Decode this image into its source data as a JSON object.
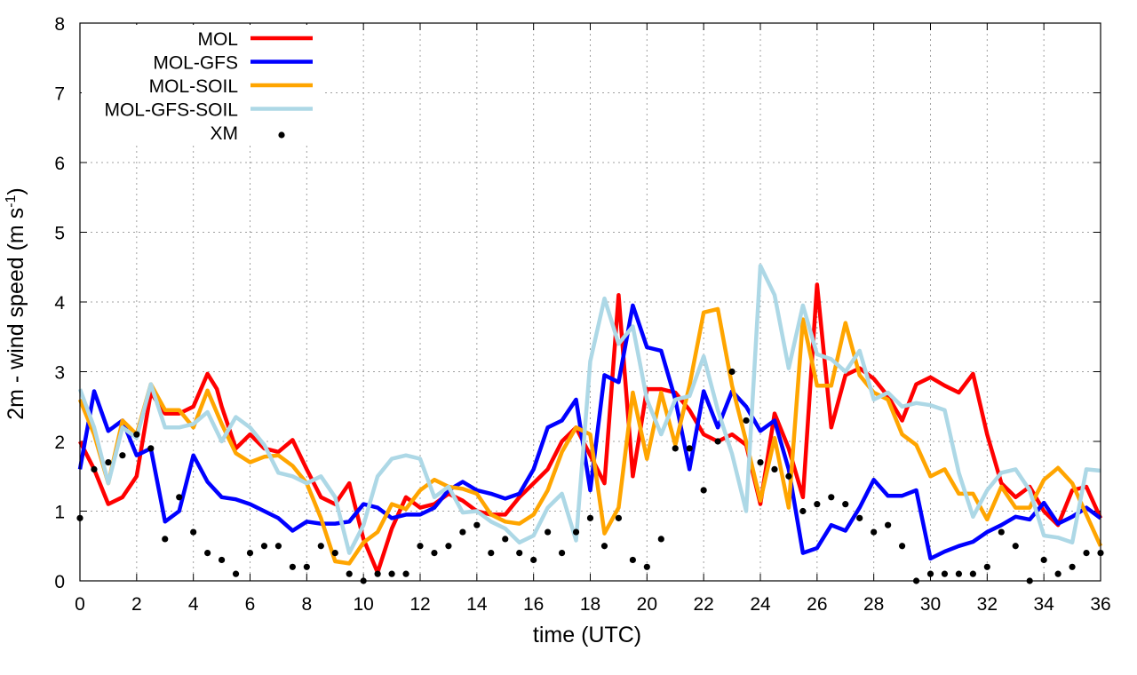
{
  "chart_data": {
    "type": "line",
    "title": "",
    "xlabel": "time (UTC)",
    "ylabel": "2m - wind speed  (m s⁻¹)",
    "ylabel_main": "2m - wind speed  (m s",
    "ylabel_sup": "-1",
    "ylabel_tail": ")",
    "xlim": [
      0,
      36
    ],
    "ylim": [
      0,
      8
    ],
    "xticks": [
      0,
      2,
      4,
      6,
      8,
      10,
      12,
      14,
      16,
      18,
      20,
      22,
      24,
      26,
      28,
      30,
      32,
      34,
      36
    ],
    "yticks": [
      0,
      1,
      2,
      3,
      4,
      5,
      6,
      7,
      8
    ],
    "grid": true,
    "legend_position": "top-left",
    "series": [
      {
        "name": "MOL",
        "color": "#ff0000",
        "style": "line",
        "x": [
          0,
          0.5,
          1,
          1.5,
          2,
          2.5,
          3,
          3.5,
          4,
          4.5,
          4.83,
          5,
          5.5,
          6,
          6.5,
          7,
          7.5,
          8,
          8.5,
          9,
          9.5,
          10,
          10.5,
          11,
          11.5,
          12,
          12.5,
          13,
          13.5,
          14,
          14.5,
          15,
          15.5,
          16,
          16.5,
          17,
          17.5,
          18,
          18.5,
          19,
          19.5,
          20,
          20.5,
          21,
          21.5,
          22,
          22.5,
          23,
          23.5,
          24,
          24.5,
          25,
          25.5,
          26,
          26.5,
          27,
          27.5,
          28,
          28.5,
          29,
          29.5,
          30,
          30.5,
          31,
          31.5,
          32,
          32.5,
          33,
          33.5,
          34,
          34.5,
          35,
          35.5,
          36
        ],
        "values": [
          2.0,
          1.6,
          1.1,
          1.2,
          1.5,
          2.7,
          2.4,
          2.4,
          2.5,
          2.97,
          2.75,
          2.5,
          1.9,
          2.1,
          1.9,
          1.85,
          2.02,
          1.6,
          1.2,
          1.1,
          1.4,
          0.6,
          0.12,
          0.75,
          1.2,
          1.05,
          1.1,
          1.25,
          1.15,
          1.0,
          0.95,
          0.95,
          1.2,
          1.4,
          1.6,
          2.0,
          2.2,
          1.8,
          1.4,
          4.1,
          1.5,
          2.75,
          2.75,
          2.7,
          2.45,
          2.1,
          2.0,
          2.1,
          1.95,
          1.1,
          2.4,
          1.9,
          1.2,
          4.25,
          2.2,
          2.95,
          3.05,
          2.9,
          2.65,
          2.3,
          2.82,
          2.92,
          2.8,
          2.7,
          2.97,
          2.1,
          1.4,
          1.2,
          1.35,
          1.0,
          0.8,
          1.3,
          1.35,
          0.9
        ]
      },
      {
        "name": "MOL-GFS",
        "color": "#0000ff",
        "style": "line",
        "x": [
          0,
          0.5,
          1,
          1.5,
          2,
          2.5,
          3,
          3.5,
          4,
          4.5,
          5,
          5.5,
          6,
          6.5,
          7,
          7.5,
          8,
          8.5,
          9,
          9.5,
          10,
          10.5,
          11,
          11.5,
          12,
          12.5,
          13,
          13.5,
          14,
          14.5,
          15,
          15.5,
          16,
          16.5,
          17,
          17.5,
          18,
          18.5,
          19,
          19.5,
          20,
          20.5,
          21,
          21.5,
          22,
          22.5,
          23,
          23.5,
          24,
          24.5,
          25,
          25.5,
          26,
          26.5,
          27,
          27.5,
          28,
          28.5,
          29,
          29.5,
          30,
          30.5,
          31,
          31.5,
          32,
          32.5,
          33,
          33.5,
          34,
          34.5,
          35,
          35.5,
          36
        ],
        "values": [
          1.6,
          2.72,
          2.15,
          2.3,
          1.8,
          1.9,
          0.85,
          1.0,
          1.8,
          1.42,
          1.2,
          1.17,
          1.1,
          1.0,
          0.9,
          0.72,
          0.85,
          0.82,
          0.82,
          0.85,
          1.1,
          1.05,
          0.9,
          0.95,
          0.95,
          1.05,
          1.3,
          1.42,
          1.3,
          1.25,
          1.18,
          1.25,
          1.6,
          2.2,
          2.3,
          2.6,
          1.3,
          2.95,
          2.85,
          3.95,
          3.35,
          3.3,
          2.6,
          1.6,
          2.72,
          2.2,
          2.72,
          2.5,
          2.15,
          2.3,
          1.6,
          0.4,
          0.47,
          0.8,
          0.72,
          1.05,
          1.45,
          1.22,
          1.22,
          1.3,
          0.32,
          0.42,
          0.5,
          0.56,
          0.7,
          0.8,
          0.92,
          0.88,
          1.12,
          0.82,
          0.92,
          1.05,
          0.9
        ]
      },
      {
        "name": "MOL-SOIL",
        "color": "#ffa500",
        "style": "line",
        "x": [
          0,
          0.5,
          1,
          1.5,
          2,
          2.5,
          3,
          3.5,
          4,
          4.5,
          5,
          5.5,
          6,
          6.5,
          7,
          7.5,
          8,
          8.5,
          9,
          9.5,
          10,
          10.5,
          11,
          11.5,
          12,
          12.5,
          13,
          13.5,
          14,
          14.5,
          15,
          15.5,
          16,
          16.5,
          17,
          17.5,
          18,
          18.5,
          19,
          19.5,
          20,
          20.5,
          21,
          21.5,
          22,
          22.5,
          23,
          23.5,
          24,
          24.5,
          25,
          25.5,
          26,
          26.5,
          27,
          27.5,
          28,
          28.5,
          29,
          29.5,
          30,
          30.5,
          31,
          31.5,
          32,
          32.5,
          33,
          33.5,
          34,
          34.5,
          35,
          35.5,
          36
        ],
        "values": [
          2.6,
          2.1,
          1.4,
          2.3,
          2.1,
          2.82,
          2.45,
          2.45,
          2.2,
          2.73,
          2.25,
          1.83,
          1.7,
          1.78,
          1.8,
          1.65,
          1.4,
          0.9,
          0.28,
          0.25,
          0.55,
          0.7,
          1.1,
          1.03,
          1.3,
          1.45,
          1.35,
          1.32,
          1.25,
          0.95,
          0.85,
          0.82,
          0.95,
          1.3,
          1.85,
          2.2,
          2.1,
          0.68,
          1.05,
          2.7,
          1.75,
          2.7,
          1.95,
          2.8,
          3.85,
          3.9,
          2.8,
          2.0,
          1.15,
          2.05,
          1.05,
          3.75,
          2.8,
          2.8,
          3.7,
          2.95,
          2.7,
          2.6,
          2.1,
          1.95,
          1.5,
          1.6,
          1.25,
          1.25,
          0.88,
          1.35,
          1.05,
          1.05,
          1.45,
          1.62,
          1.4,
          0.95,
          0.5
        ]
      },
      {
        "name": "MOL-GFS-SOIL",
        "color": "#add8e6",
        "style": "line",
        "x": [
          0,
          0.5,
          1,
          1.5,
          2,
          2.5,
          3,
          3.5,
          4,
          4.5,
          5,
          5.5,
          6,
          6.5,
          7,
          7.5,
          8,
          8.5,
          9,
          9.5,
          10,
          10.5,
          11,
          11.5,
          12,
          12.5,
          13,
          13.5,
          14,
          14.5,
          15,
          15.5,
          16,
          16.5,
          17,
          17.5,
          18,
          18.5,
          19,
          19.5,
          20,
          20.5,
          21,
          21.5,
          22,
          22.5,
          23,
          23.5,
          24,
          24.5,
          25,
          25.5,
          26,
          26.5,
          27,
          27.5,
          28,
          28.5,
          29,
          29.5,
          30,
          30.5,
          31,
          31.5,
          32,
          32.5,
          33,
          33.5,
          34,
          34.5,
          35,
          35.5,
          36
        ],
        "values": [
          2.75,
          2.2,
          1.4,
          2.2,
          2.05,
          2.82,
          2.2,
          2.2,
          2.25,
          2.42,
          2.0,
          2.35,
          2.2,
          1.95,
          1.55,
          1.5,
          1.4,
          1.5,
          1.2,
          0.4,
          0.8,
          1.5,
          1.75,
          1.8,
          1.75,
          1.2,
          1.35,
          0.98,
          1.0,
          0.85,
          0.75,
          0.55,
          0.65,
          1.05,
          1.25,
          0.58,
          3.15,
          4.05,
          3.4,
          3.65,
          2.6,
          2.1,
          2.6,
          2.65,
          3.22,
          2.45,
          1.82,
          1.0,
          4.52,
          4.1,
          3.05,
          3.95,
          3.25,
          3.18,
          3.0,
          3.3,
          2.6,
          2.7,
          2.5,
          2.55,
          2.52,
          2.45,
          1.55,
          0.92,
          1.3,
          1.55,
          1.6,
          1.3,
          0.65,
          0.62,
          0.55,
          1.6,
          1.58
        ]
      },
      {
        "name": "XM",
        "color": "#000000",
        "style": "points",
        "x": [
          0,
          0.5,
          1,
          1.5,
          2,
          2.5,
          3,
          3.5,
          4,
          4.5,
          5,
          5.5,
          6,
          6.5,
          7,
          7.5,
          8,
          8.5,
          9,
          9.5,
          10,
          10.5,
          11,
          11.5,
          12,
          12.5,
          13,
          13.5,
          14,
          14.5,
          15,
          15.5,
          16,
          16.5,
          17,
          17.5,
          18,
          18.5,
          19,
          19.5,
          20,
          20.5,
          21,
          21.5,
          22,
          22.5,
          23,
          23.5,
          24,
          24.5,
          25,
          25.5,
          26,
          26.5,
          27,
          27.5,
          28,
          28.5,
          29,
          29.5,
          30,
          30.5,
          31,
          31.5,
          32,
          32.5,
          33,
          33.5,
          34,
          34.5,
          35,
          35.5,
          36
        ],
        "values": [
          0.9,
          1.6,
          1.7,
          1.8,
          2.1,
          1.9,
          0.6,
          1.2,
          0.7,
          0.4,
          0.3,
          0.1,
          0.4,
          0.5,
          0.5,
          0.2,
          0.2,
          0.5,
          0.4,
          0.1,
          0.0,
          0.1,
          0.1,
          0.1,
          0.5,
          0.4,
          0.5,
          0.7,
          0.8,
          0.4,
          0.6,
          0.4,
          0.3,
          0.7,
          0.4,
          0.7,
          0.9,
          0.5,
          0.9,
          0.3,
          0.2,
          0.6,
          1.9,
          1.9,
          1.3,
          2.0,
          3.0,
          2.3,
          1.7,
          1.6,
          1.5,
          1.0,
          1.1,
          1.2,
          1.1,
          0.9,
          0.7,
          0.8,
          0.5,
          0.0,
          0.1,
          0.1,
          0.1,
          0.1,
          0.2,
          0.7,
          0.5,
          0.0,
          0.3,
          0.1,
          0.2,
          0.4,
          0.4
        ]
      }
    ]
  }
}
